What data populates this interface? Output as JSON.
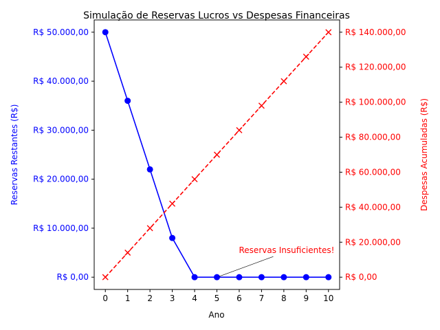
{
  "chart_data": {
    "type": "line",
    "title": "Simulação de Reservas Lucros vs Despesas Financeiras",
    "xlabel": "Ano",
    "ylabel_left": "Reservas Restantes (R$)",
    "ylabel_right": "Despesas Acumuladas (R$)",
    "x": [
      0,
      1,
      2,
      3,
      4,
      5,
      6,
      7,
      8,
      9,
      10
    ],
    "xlim": [
      -0.5,
      10.5
    ],
    "ylim_left": [
      -2500,
      52500
    ],
    "ylim_right": [
      -7000,
      147000
    ],
    "yticks_left": [
      0,
      10000,
      20000,
      30000,
      40000,
      50000
    ],
    "yticks_right": [
      0,
      20000,
      40000,
      60000,
      80000,
      100000,
      120000,
      140000
    ],
    "ytick_labels_left": [
      "R$ 0,00",
      "R$ 10.000,00",
      "R$ 20.000,00",
      "R$ 30.000,00",
      "R$ 40.000,00",
      "R$ 50.000,00"
    ],
    "ytick_labels_right": [
      "R$ 0,00",
      "R$ 20.000,00",
      "R$ 40.000,00",
      "R$ 60.000,00",
      "R$ 80.000,00",
      "R$ 100.000,00",
      "R$ 120.000,00",
      "R$ 140.000,00"
    ],
    "series": [
      {
        "axis": "left",
        "color": "#0000ff",
        "line_style": "solid",
        "marker": "circle",
        "values": [
          50000,
          36000,
          22000,
          8000,
          0,
          0,
          0,
          0,
          0,
          0,
          0
        ]
      },
      {
        "axis": "right",
        "color": "#ff0000",
        "line_style": "dashed",
        "marker": "x",
        "values": [
          0,
          14000,
          28000,
          42000,
          56000,
          70000,
          84000,
          98000,
          112000,
          126000,
          140000
        ]
      }
    ],
    "annotation": {
      "text": "Reservas Insuficientes!",
      "x": 5,
      "y": 0,
      "color": "#ff0000"
    },
    "grid": false
  }
}
